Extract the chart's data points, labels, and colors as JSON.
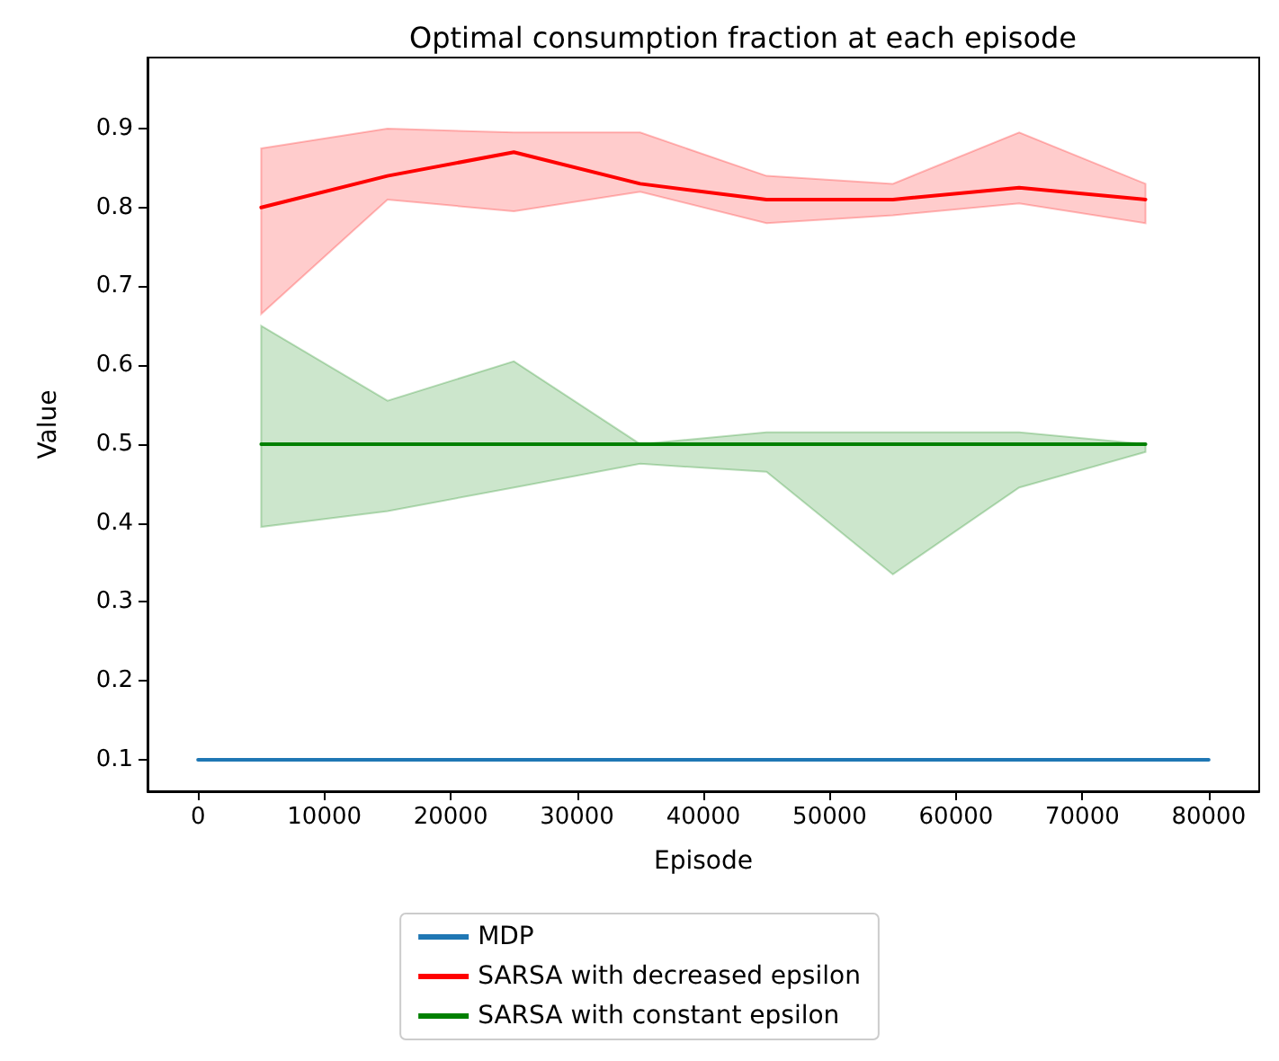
{
  "chart_data": {
    "type": "line",
    "title": "Optimal consumption fraction at each episode",
    "xlabel": "Episode",
    "ylabel": "Value",
    "xlim": [
      -4000,
      84000
    ],
    "xticks": [
      0,
      10000,
      20000,
      30000,
      40000,
      50000,
      60000,
      70000,
      80000
    ],
    "ylim": [
      0.06,
      0.99
    ],
    "yticks": [
      0.1,
      0.2,
      0.3,
      0.4,
      0.5,
      0.6,
      0.7,
      0.8,
      0.9
    ],
    "grid": false,
    "legend": "bottom",
    "marker": "none",
    "line_style": "solid",
    "series": [
      {
        "name": "MDP",
        "color": "#1f77b4",
        "x": [
          0,
          80000
        ],
        "values": [
          0.1,
          0.1
        ]
      },
      {
        "name": "SARSA with decreased epsilon",
        "color": "#ff0000",
        "x": [
          5000,
          15000,
          25000,
          35000,
          45000,
          55000,
          65000,
          75000
        ],
        "values": [
          0.8,
          0.84,
          0.87,
          0.83,
          0.81,
          0.81,
          0.825,
          0.81
        ],
        "lower": [
          0.665,
          0.81,
          0.795,
          0.82,
          0.78,
          0.79,
          0.805,
          0.78
        ],
        "upper": [
          0.875,
          0.9,
          0.895,
          0.895,
          0.84,
          0.83,
          0.895,
          0.83
        ]
      },
      {
        "name": "SARSA with constant epsilon",
        "color": "#008000",
        "x": [
          5000,
          15000,
          25000,
          35000,
          45000,
          55000,
          65000,
          75000
        ],
        "values": [
          0.5,
          0.5,
          0.5,
          0.5,
          0.5,
          0.5,
          0.5,
          0.5
        ],
        "lower": [
          0.395,
          0.415,
          0.445,
          0.475,
          0.465,
          0.335,
          0.445,
          0.49
        ],
        "upper": [
          0.65,
          0.555,
          0.605,
          0.5,
          0.515,
          0.515,
          0.515,
          0.5
        ]
      }
    ]
  }
}
